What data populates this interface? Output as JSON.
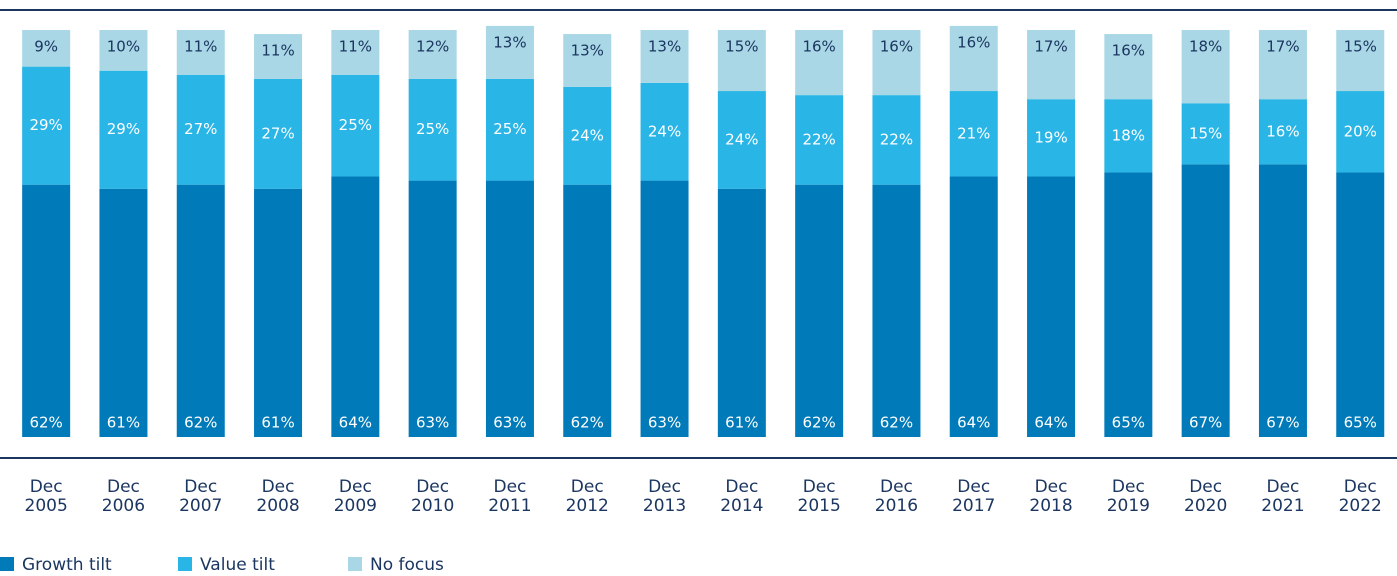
{
  "chart_data": {
    "type": "stacked_bar",
    "categories": [
      "Dec 2005",
      "Dec 2006",
      "Dec 2007",
      "Dec 2008",
      "Dec 2009",
      "Dec 2010",
      "Dec 2011",
      "Dec 2012",
      "Dec 2013",
      "Dec 2014",
      "Dec 2015",
      "Dec 2016",
      "Dec 2017",
      "Dec 2018",
      "Dec 2019",
      "Dec 2020",
      "Dec 2021",
      "Dec 2022"
    ],
    "series": [
      {
        "name": "Growth tilt",
        "color": "#007ab8",
        "values": [
          62,
          61,
          62,
          61,
          64,
          63,
          63,
          62,
          63,
          61,
          62,
          62,
          64,
          64,
          65,
          67,
          67,
          65
        ],
        "value_labels": [
          "62%",
          "61%",
          "62%",
          "61%",
          "64%",
          "63%",
          "63%",
          "62%",
          "63%",
          "61%",
          "62%",
          "62%",
          "64%",
          "64%",
          "65%",
          "67%",
          "67%",
          "65%"
        ]
      },
      {
        "name": "Value tilt",
        "color": "#29b5e6",
        "values": [
          29,
          29,
          27,
          27,
          25,
          25,
          25,
          24,
          24,
          24,
          22,
          22,
          21,
          19,
          18,
          15,
          16,
          20
        ],
        "value_labels": [
          "29%",
          "29%",
          "27%",
          "27%",
          "25%",
          "25%",
          "25%",
          "24%",
          "24%",
          "24%",
          "22%",
          "22%",
          "21%",
          "19%",
          "18%",
          "15%",
          "16%",
          "20%"
        ]
      },
      {
        "name": "No focus",
        "color": "#a9d7e6",
        "values": [
          9,
          10,
          11,
          11,
          11,
          12,
          13,
          13,
          13,
          15,
          16,
          16,
          16,
          17,
          16,
          18,
          17,
          15
        ],
        "value_labels": [
          "9%",
          "10%",
          "11%",
          "11%",
          "11%",
          "12%",
          "13%",
          "13%",
          "13%",
          "15%",
          "16%",
          "16%",
          "16%",
          "17%",
          "16%",
          "18%",
          "17%",
          "15%"
        ]
      }
    ],
    "ylim": [
      0,
      100
    ]
  }
}
